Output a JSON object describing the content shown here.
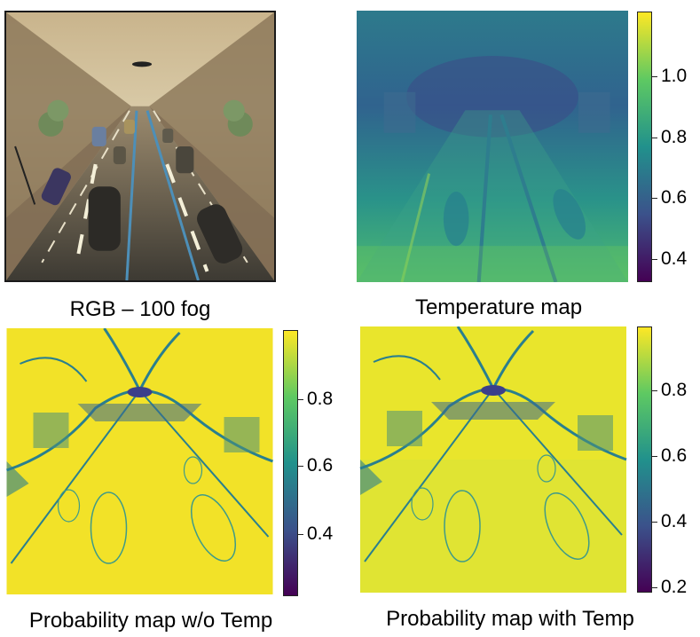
{
  "panels": [
    {
      "id": "rgb",
      "caption": "RGB – 100 fog"
    },
    {
      "id": "temperature",
      "caption": "Temperature map",
      "colorbar": {
        "colormap": "viridis",
        "min": 0.33,
        "max": 1.17,
        "ticks": [
          "1.0",
          "0.8",
          "0.6",
          "0.4"
        ]
      }
    },
    {
      "id": "prob-no-temp",
      "caption": "Probability map w/o Temp",
      "colorbar": {
        "colormap": "viridis",
        "min": 0.22,
        "max": 0.98,
        "ticks": [
          "0.8",
          "0.6",
          "0.4"
        ]
      }
    },
    {
      "id": "prob-with-temp",
      "caption": "Probability map with Temp",
      "colorbar": {
        "colormap": "viridis",
        "min": 0.18,
        "max": 0.98,
        "ticks": [
          "0.8",
          "0.6",
          "0.4",
          "0.2"
        ]
      }
    }
  ]
}
